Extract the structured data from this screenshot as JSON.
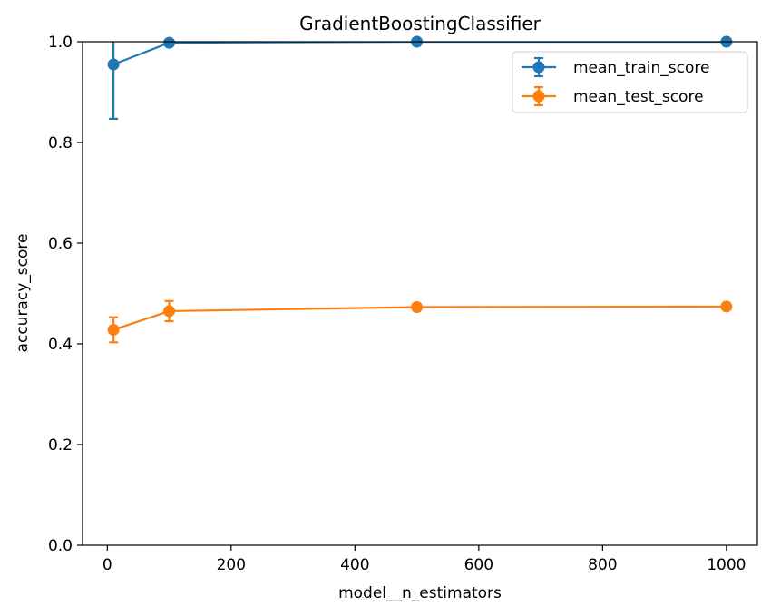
{
  "chart_data": {
    "type": "line",
    "title": "GradientBoostingClassifier",
    "xlabel": "model__n_estimators",
    "ylabel": "accuracy_score",
    "xlim": [
      -40,
      1050
    ],
    "ylim": [
      0.0,
      1.0
    ],
    "x_ticks": [
      0,
      200,
      400,
      600,
      800,
      1000
    ],
    "y_ticks": [
      0.0,
      0.2,
      0.4,
      0.6,
      0.8,
      1.0
    ],
    "x_tick_labels": [
      "0",
      "200",
      "400",
      "600",
      "800",
      "1000"
    ],
    "y_tick_labels": [
      "0.0",
      "0.2",
      "0.4",
      "0.6",
      "0.8",
      "1.0"
    ],
    "grid": false,
    "legend_position": "upper right",
    "error_bars": true,
    "series": [
      {
        "name": "mean_train_score",
        "color": "#1f77b4",
        "x": [
          10,
          100,
          500,
          1000
        ],
        "y": [
          0.955,
          0.998,
          1.0,
          1.0
        ],
        "yerr": [
          0.108,
          0.004,
          0.0,
          0.0
        ]
      },
      {
        "name": "mean_test_score",
        "color": "#ff7f0e",
        "x": [
          10,
          100,
          500,
          1000
        ],
        "y": [
          0.428,
          0.465,
          0.473,
          0.474
        ],
        "yerr": [
          0.025,
          0.02,
          0.0,
          0.0
        ]
      }
    ]
  }
}
